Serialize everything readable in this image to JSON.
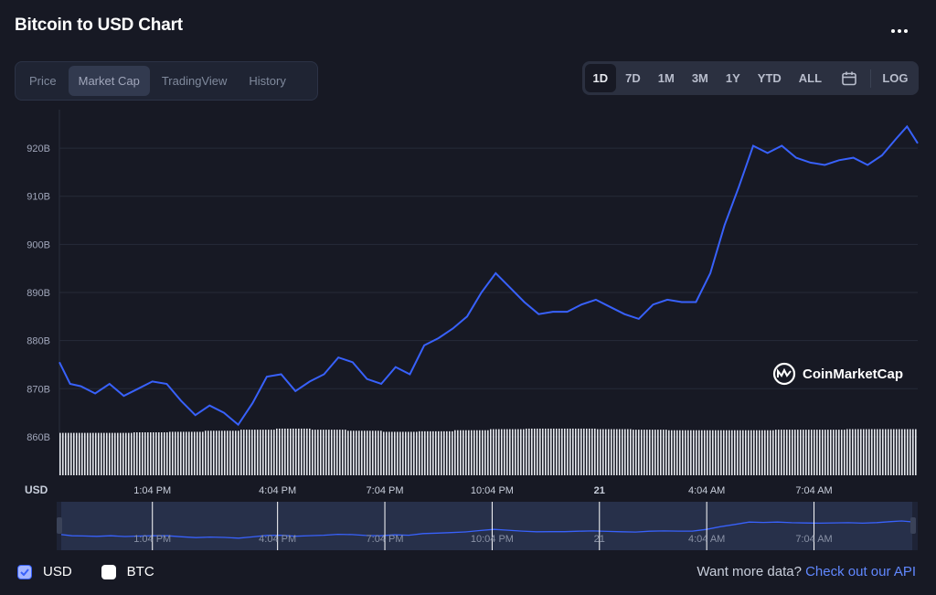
{
  "title": "Bitcoin to USD Chart",
  "tabs": [
    {
      "label": "Price"
    },
    {
      "label": "Market Cap"
    },
    {
      "label": "TradingView"
    },
    {
      "label": "History"
    }
  ],
  "active_tab": "Market Cap",
  "ranges": [
    "1D",
    "7D",
    "1M",
    "3M",
    "1Y",
    "YTD",
    "ALL"
  ],
  "active_range": "1D",
  "log_label": "LOG",
  "watermark": "CoinMarketCap",
  "footer": {
    "currencies": [
      {
        "label": "USD",
        "checked": true
      },
      {
        "label": "BTC",
        "checked": false
      }
    ],
    "want_more": "Want more data?",
    "api_link": "Check out our API"
  },
  "colors": {
    "line": "#3861fb",
    "background": "#171924",
    "volume": "#ffffff"
  },
  "chart_data": {
    "type": "line",
    "title": "Bitcoin to USD Chart",
    "ylabel": "USD",
    "y_ticks": [
      "860B",
      "870B",
      "880B",
      "890B",
      "900B",
      "910B",
      "920B"
    ],
    "y_tick_values": [
      860,
      870,
      880,
      890,
      900,
      910,
      920
    ],
    "ylim": [
      852,
      928
    ],
    "x_ticks": [
      "1:04 PM",
      "4:04 PM",
      "7:04 PM",
      "10:04 PM",
      "21",
      "4:04 AM",
      "7:04 AM"
    ],
    "xlim": [
      0,
      24
    ],
    "x_tick_values": [
      2.6,
      6.1,
      9.1,
      12.1,
      15.1,
      18.1,
      21.1
    ],
    "series": [
      {
        "values_unit": "B USD",
        "x": [
          0,
          0.3,
          0.6,
          1.0,
          1.4,
          1.8,
          2.2,
          2.6,
          3.0,
          3.4,
          3.8,
          4.2,
          4.6,
          5.0,
          5.4,
          5.8,
          6.2,
          6.6,
          7.0,
          7.4,
          7.8,
          8.2,
          8.6,
          9.0,
          9.4,
          9.8,
          10.2,
          10.6,
          11.0,
          11.4,
          11.8,
          12.2,
          12.6,
          13.0,
          13.4,
          13.8,
          14.2,
          14.6,
          15.0,
          15.4,
          15.8,
          16.2,
          16.6,
          17.0,
          17.4,
          17.8,
          18.2,
          18.6,
          19.0,
          19.4,
          19.8,
          20.2,
          20.6,
          21.0,
          21.4,
          21.8,
          22.2,
          22.6,
          23.0,
          23.4,
          23.7,
          24.0
        ],
        "values": [
          875.5,
          871,
          870.5,
          869,
          871,
          868.5,
          870,
          871.5,
          871,
          867.5,
          864.5,
          866.5,
          865,
          862.5,
          867,
          872.5,
          873,
          869.5,
          871.5,
          873,
          876.5,
          875.5,
          872,
          871,
          874.5,
          873,
          879,
          880.5,
          882.5,
          885,
          890,
          894,
          891,
          888,
          885.5,
          886,
          886,
          887.5,
          888.5,
          887,
          885.5,
          884.5,
          887.5,
          888.5,
          888,
          888,
          894,
          904,
          912,
          920.5,
          919,
          920.5,
          918,
          917,
          916.5,
          917.5,
          918,
          916.5,
          918.5,
          922,
          924.5,
          921
        ]
      }
    ],
    "volume": {
      "note": "market volume bars (relative, unlabeled)",
      "levels": [
        0.8,
        0.8,
        0.81,
        0.82,
        0.84,
        0.86,
        0.88,
        0.86,
        0.84,
        0.82,
        0.83,
        0.85,
        0.87,
        0.88,
        0.88,
        0.87,
        0.86,
        0.85,
        0.85,
        0.85,
        0.86,
        0.86,
        0.87,
        0.87
      ]
    }
  }
}
